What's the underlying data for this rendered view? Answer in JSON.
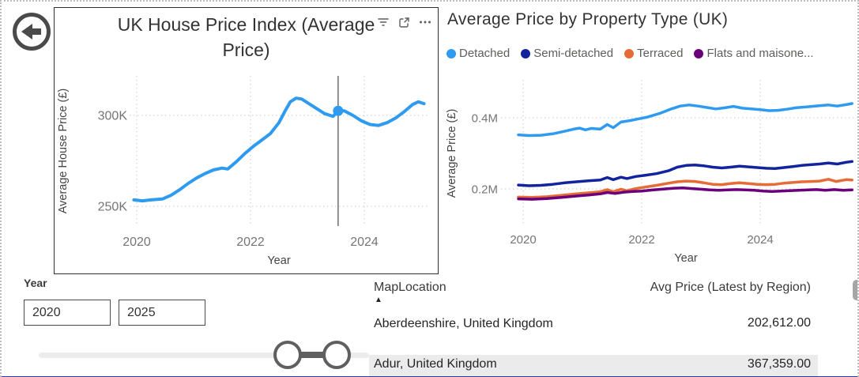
{
  "icons": {
    "back": "arrow-left-circle",
    "visual_header": [
      "filter",
      "focus-mode",
      "more-options"
    ],
    "table_sort": "sort-ascending-triangle"
  },
  "colors": {
    "line_blue": "#2E9BF0",
    "dark_blue": "#12239E",
    "orange": "#E66C37",
    "purple": "#6B007B",
    "table_accent_blue": "#118DFF",
    "slider_dark": "#5f5f5f",
    "bottom_bar_blue": "#234196"
  },
  "chart_data": [
    {
      "type": "line",
      "title": "UK House Price Index (Average Price)",
      "xlabel": "Year",
      "ylabel": "Average House Price (£)",
      "x_ticks": [
        2020,
        2022,
        2024
      ],
      "y_ticks": [
        {
          "label": "300K",
          "value": 300
        },
        {
          "label": "250K",
          "value": 250
        }
      ],
      "xlim": [
        2019.9,
        2025.1
      ],
      "ylim": [
        239,
        321
      ],
      "unit": "GBP thousands",
      "grid": "dotted",
      "crosshair_x": 2023.54,
      "marker": {
        "x": 2023.54,
        "y": 302.5
      },
      "series": [
        {
          "name": "Average House Price",
          "color": "#2E9BF0",
          "points": [
            [
              2019.95,
              253.5
            ],
            [
              2020.1,
              253
            ],
            [
              2020.25,
              253.5
            ],
            [
              2020.45,
              254
            ],
            [
              2020.6,
              256
            ],
            [
              2020.75,
              259
            ],
            [
              2020.9,
              262.5
            ],
            [
              2021.05,
              265.5
            ],
            [
              2021.2,
              268
            ],
            [
              2021.35,
              270
            ],
            [
              2021.5,
              271
            ],
            [
              2021.6,
              270.5
            ],
            [
              2021.75,
              274.5
            ],
            [
              2021.9,
              279
            ],
            [
              2022.05,
              283
            ],
            [
              2022.2,
              286.5
            ],
            [
              2022.35,
              290
            ],
            [
              2022.5,
              296
            ],
            [
              2022.6,
              302
            ],
            [
              2022.7,
              307.5
            ],
            [
              2022.8,
              309.5
            ],
            [
              2022.9,
              309
            ],
            [
              2023.0,
              307
            ],
            [
              2023.15,
              304
            ],
            [
              2023.3,
              301
            ],
            [
              2023.45,
              299.5
            ],
            [
              2023.54,
              302.5
            ],
            [
              2023.65,
              302.5
            ],
            [
              2023.8,
              300
            ],
            [
              2023.95,
              297
            ],
            [
              2024.1,
              295
            ],
            [
              2024.25,
              294.5
            ],
            [
              2024.4,
              296
            ],
            [
              2024.55,
              298.5
            ],
            [
              2024.7,
              302
            ],
            [
              2024.85,
              306
            ],
            [
              2024.95,
              307.5
            ],
            [
              2025.05,
              306.5
            ]
          ]
        }
      ]
    },
    {
      "type": "line",
      "title": "Average Price by Property Type (UK)",
      "xlabel": "Year",
      "ylabel": "Average Price (£)",
      "x_ticks": [
        2020,
        2022,
        2024
      ],
      "y_ticks": [
        {
          "label": "0.4M",
          "value": 0.4
        },
        {
          "label": "0.2M",
          "value": 0.2
        }
      ],
      "xlim": [
        2019.9,
        2025.6
      ],
      "ylim": [
        0.1,
        0.51
      ],
      "unit": "GBP millions",
      "grid": "dotted",
      "legend": [
        "Detached",
        "Semi-detached",
        "Terraced",
        "Flats and maisone..."
      ],
      "series": [
        {
          "name": "Detached",
          "color": "#2E9BF0",
          "points": [
            [
              2019.92,
              0.352
            ],
            [
              2020.1,
              0.35
            ],
            [
              2020.3,
              0.351
            ],
            [
              2020.5,
              0.355
            ],
            [
              2020.7,
              0.362
            ],
            [
              2020.85,
              0.368
            ],
            [
              2020.95,
              0.371
            ],
            [
              2021.05,
              0.366
            ],
            [
              2021.15,
              0.37
            ],
            [
              2021.3,
              0.368
            ],
            [
              2021.42,
              0.381
            ],
            [
              2021.52,
              0.372
            ],
            [
              2021.65,
              0.388
            ],
            [
              2021.8,
              0.392
            ],
            [
              2021.95,
              0.397
            ],
            [
              2022.1,
              0.402
            ],
            [
              2022.3,
              0.412
            ],
            [
              2022.5,
              0.425
            ],
            [
              2022.65,
              0.433
            ],
            [
              2022.8,
              0.436
            ],
            [
              2022.95,
              0.433
            ],
            [
              2023.1,
              0.429
            ],
            [
              2023.25,
              0.425
            ],
            [
              2023.4,
              0.428
            ],
            [
              2023.55,
              0.432
            ],
            [
              2023.7,
              0.427
            ],
            [
              2023.85,
              0.425
            ],
            [
              2024.0,
              0.423
            ],
            [
              2024.15,
              0.42
            ],
            [
              2024.3,
              0.421
            ],
            [
              2024.45,
              0.424
            ],
            [
              2024.6,
              0.428
            ],
            [
              2024.8,
              0.431
            ],
            [
              2025.0,
              0.434
            ],
            [
              2025.15,
              0.436
            ],
            [
              2025.3,
              0.433
            ],
            [
              2025.45,
              0.437
            ],
            [
              2025.55,
              0.44
            ]
          ]
        },
        {
          "name": "Semi-detached",
          "color": "#12239E",
          "points": [
            [
              2019.92,
              0.211
            ],
            [
              2020.1,
              0.209
            ],
            [
              2020.3,
              0.21
            ],
            [
              2020.5,
              0.213
            ],
            [
              2020.7,
              0.217
            ],
            [
              2020.9,
              0.22
            ],
            [
              2021.1,
              0.223
            ],
            [
              2021.3,
              0.225
            ],
            [
              2021.42,
              0.232
            ],
            [
              2021.52,
              0.226
            ],
            [
              2021.65,
              0.233
            ],
            [
              2021.75,
              0.229
            ],
            [
              2021.9,
              0.235
            ],
            [
              2022.05,
              0.238
            ],
            [
              2022.25,
              0.243
            ],
            [
              2022.45,
              0.251
            ],
            [
              2022.6,
              0.261
            ],
            [
              2022.75,
              0.266
            ],
            [
              2022.9,
              0.267
            ],
            [
              2023.05,
              0.265
            ],
            [
              2023.2,
              0.261
            ],
            [
              2023.35,
              0.259
            ],
            [
              2023.5,
              0.261
            ],
            [
              2023.65,
              0.264
            ],
            [
              2023.8,
              0.262
            ],
            [
              2023.95,
              0.26
            ],
            [
              2024.1,
              0.258
            ],
            [
              2024.25,
              0.257
            ],
            [
              2024.4,
              0.26
            ],
            [
              2024.55,
              0.263
            ],
            [
              2024.7,
              0.266
            ],
            [
              2024.85,
              0.268
            ],
            [
              2025.0,
              0.27
            ],
            [
              2025.15,
              0.273
            ],
            [
              2025.3,
              0.27
            ],
            [
              2025.45,
              0.275
            ],
            [
              2025.55,
              0.277
            ]
          ]
        },
        {
          "name": "Terraced",
          "color": "#E66C37",
          "points": [
            [
              2019.92,
              0.177
            ],
            [
              2020.15,
              0.176
            ],
            [
              2020.4,
              0.178
            ],
            [
              2020.65,
              0.182
            ],
            [
              2020.9,
              0.186
            ],
            [
              2021.1,
              0.189
            ],
            [
              2021.3,
              0.192
            ],
            [
              2021.42,
              0.198
            ],
            [
              2021.52,
              0.192
            ],
            [
              2021.65,
              0.199
            ],
            [
              2021.75,
              0.195
            ],
            [
              2021.9,
              0.201
            ],
            [
              2022.05,
              0.205
            ],
            [
              2022.25,
              0.21
            ],
            [
              2022.45,
              0.216
            ],
            [
              2022.6,
              0.22
            ],
            [
              2022.75,
              0.222
            ],
            [
              2022.9,
              0.221
            ],
            [
              2023.05,
              0.217
            ],
            [
              2023.2,
              0.213
            ],
            [
              2023.35,
              0.212
            ],
            [
              2023.5,
              0.215
            ],
            [
              2023.65,
              0.217
            ],
            [
              2023.8,
              0.215
            ],
            [
              2023.95,
              0.213
            ],
            [
              2024.1,
              0.212
            ],
            [
              2024.25,
              0.213
            ],
            [
              2024.4,
              0.216
            ],
            [
              2024.55,
              0.218
            ],
            [
              2024.7,
              0.22
            ],
            [
              2024.85,
              0.221
            ],
            [
              2025.0,
              0.222
            ],
            [
              2025.15,
              0.227
            ],
            [
              2025.28,
              0.221
            ],
            [
              2025.45,
              0.226
            ],
            [
              2025.55,
              0.225
            ]
          ]
        },
        {
          "name": "Flats and maisone...",
          "color": "#6B007B",
          "points": [
            [
              2019.92,
              0.172
            ],
            [
              2020.15,
              0.171
            ],
            [
              2020.4,
              0.173
            ],
            [
              2020.65,
              0.176
            ],
            [
              2020.9,
              0.18
            ],
            [
              2021.1,
              0.183
            ],
            [
              2021.3,
              0.186
            ],
            [
              2021.42,
              0.19
            ],
            [
              2021.55,
              0.187
            ],
            [
              2021.7,
              0.191
            ],
            [
              2021.85,
              0.193
            ],
            [
              2022.0,
              0.194
            ],
            [
              2022.2,
              0.197
            ],
            [
              2022.4,
              0.2
            ],
            [
              2022.55,
              0.202
            ],
            [
              2022.7,
              0.203
            ],
            [
              2022.85,
              0.201
            ],
            [
              2023.0,
              0.199
            ],
            [
              2023.15,
              0.197
            ],
            [
              2023.3,
              0.196
            ],
            [
              2023.45,
              0.197
            ],
            [
              2023.6,
              0.198
            ],
            [
              2023.75,
              0.197
            ],
            [
              2023.9,
              0.196
            ],
            [
              2024.05,
              0.194
            ],
            [
              2024.2,
              0.193
            ],
            [
              2024.35,
              0.194
            ],
            [
              2024.5,
              0.195
            ],
            [
              2024.65,
              0.196
            ],
            [
              2024.8,
              0.197
            ],
            [
              2024.95,
              0.198
            ],
            [
              2025.1,
              0.196
            ],
            [
              2025.25,
              0.198
            ],
            [
              2025.4,
              0.196
            ],
            [
              2025.55,
              0.197
            ]
          ]
        }
      ]
    }
  ],
  "slicer": {
    "label": "Year",
    "start": "2020",
    "end": "2025"
  },
  "table": {
    "columns": [
      "MapLocation",
      "Avg Price (Latest by Region)"
    ],
    "sort_column": "MapLocation",
    "sort_direction": "ascending",
    "rows": [
      {
        "location": "Aberdeenshire, United Kingdom",
        "price": "202,612.00"
      },
      {
        "location": "Adur, United Kingdom",
        "price": "367,359.00"
      }
    ]
  }
}
